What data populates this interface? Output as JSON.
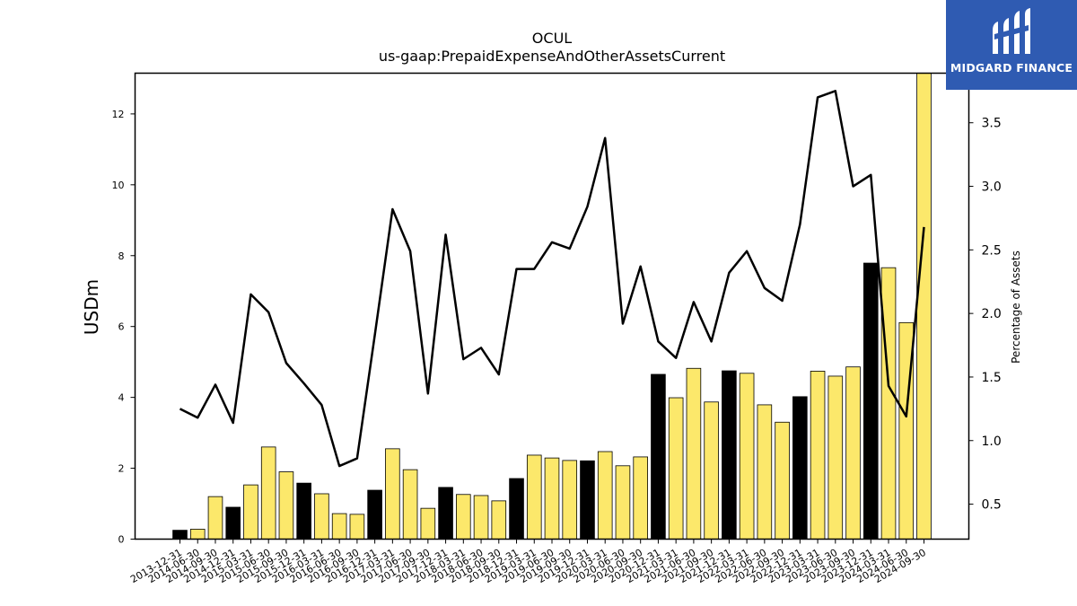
{
  "chart_data": {
    "type": "bar+line",
    "title": "OCUL",
    "subtitle": "us-gaap:PrepaidExpenseAndOtherAssetsCurrent",
    "ylabel": "USDm",
    "y2label": "Percentage of Assets",
    "ylim": [
      0,
      13.15
    ],
    "y2lim": [
      0.225,
      3.89
    ],
    "yticks": [
      "0",
      "2",
      "4",
      "6",
      "8",
      "10",
      "12"
    ],
    "y2ticks": [
      "0.5",
      "1.0",
      "1.5",
      "2.0",
      "2.5",
      "3.0",
      "3.5"
    ],
    "grid": false,
    "colors": {
      "bar_default": "#fce86b",
      "bar_highlight": "#000000",
      "line": "#000000"
    },
    "categories": [
      "2013-12-31",
      "2014-06-30",
      "2014-09-30",
      "2014-12-31",
      "2015-03-31",
      "2015-06-30",
      "2015-09-30",
      "2015-12-31",
      "2016-03-31",
      "2016-06-30",
      "2016-09-30",
      "2016-12-31",
      "2017-03-31",
      "2017-06-30",
      "2017-09-30",
      "2017-12-31",
      "2018-03-31",
      "2018-06-30",
      "2018-09-30",
      "2018-12-31",
      "2019-03-31",
      "2019-06-30",
      "2019-09-30",
      "2019-12-31",
      "2020-03-31",
      "2020-06-30",
      "2020-09-30",
      "2020-12-31",
      "2021-03-31",
      "2021-06-30",
      "2021-09-30",
      "2021-12-31",
      "2022-03-31",
      "2022-06-30",
      "2022-09-30",
      "2022-12-31",
      "2023-03-31",
      "2023-06-30",
      "2023-09-30",
      "2023-12-31",
      "2024-03-31",
      "2024-06-30",
      "2024-09-30"
    ],
    "series": [
      {
        "kind": "bar",
        "values": [
          0.25,
          0.28,
          1.2,
          0.9,
          1.53,
          2.6,
          1.9,
          1.58,
          1.28,
          0.72,
          0.7,
          1.38,
          2.55,
          1.96,
          0.87,
          1.46,
          1.26,
          1.23,
          1.08,
          1.71,
          2.37,
          2.29,
          2.22,
          2.21,
          2.47,
          2.07,
          2.32,
          4.65,
          3.99,
          4.82,
          3.87,
          4.75,
          4.68,
          3.79,
          3.3,
          4.02,
          4.74,
          4.6,
          4.86,
          7.79,
          7.66,
          6.11,
          13.15
        ],
        "highlight": [
          true,
          false,
          false,
          true,
          false,
          false,
          false,
          true,
          false,
          false,
          false,
          true,
          false,
          false,
          false,
          true,
          false,
          false,
          false,
          true,
          false,
          false,
          false,
          true,
          false,
          false,
          false,
          true,
          false,
          false,
          false,
          true,
          false,
          false,
          false,
          true,
          false,
          false,
          false,
          true,
          false,
          false,
          false
        ]
      },
      {
        "kind": "line",
        "axis": "right",
        "values": [
          1.25,
          1.18,
          1.44,
          1.14,
          2.15,
          2.01,
          1.61,
          1.45,
          1.28,
          0.8,
          0.86,
          1.83,
          2.82,
          2.49,
          1.37,
          2.62,
          1.64,
          1.73,
          1.52,
          2.35,
          2.35,
          2.56,
          2.51,
          2.84,
          3.38,
          1.92,
          2.37,
          1.78,
          1.65,
          2.09,
          1.78,
          2.32,
          2.49,
          2.2,
          2.1,
          2.7,
          3.7,
          3.75,
          3.0,
          3.09,
          1.43,
          1.19,
          2.68
        ]
      }
    ]
  },
  "logo": {
    "text": "MIDGARD FINANCE"
  }
}
